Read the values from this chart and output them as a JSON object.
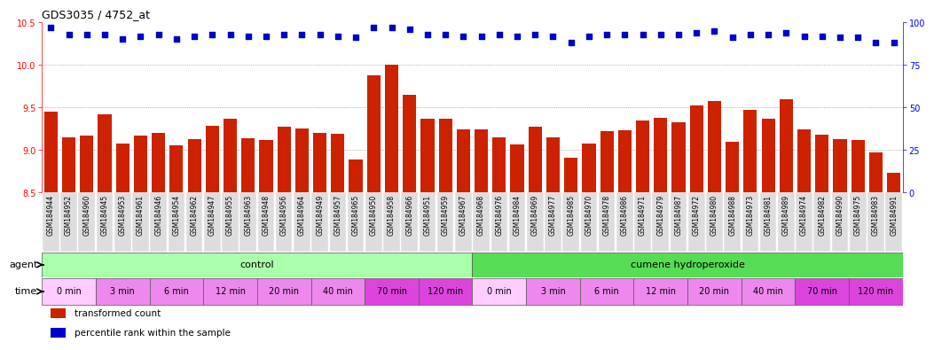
{
  "title": "GDS3035 / 4752_at",
  "samples": [
    "GSM184944",
    "GSM184952",
    "GSM184960",
    "GSM184945",
    "GSM184953",
    "GSM184961",
    "GSM184946",
    "GSM184954",
    "GSM184962",
    "GSM184947",
    "GSM184955",
    "GSM184963",
    "GSM184948",
    "GSM184956",
    "GSM184964",
    "GSM184949",
    "GSM184957",
    "GSM184965",
    "GSM184950",
    "GSM184958",
    "GSM184966",
    "GSM184951",
    "GSM184959",
    "GSM184967",
    "GSM184968",
    "GSM184976",
    "GSM184984",
    "GSM184969",
    "GSM184977",
    "GSM184985",
    "GSM184970",
    "GSM184978",
    "GSM184986",
    "GSM184971",
    "GSM184979",
    "GSM184987",
    "GSM184972",
    "GSM184980",
    "GSM184988",
    "GSM184973",
    "GSM184981",
    "GSM184989",
    "GSM184974",
    "GSM184982",
    "GSM184990",
    "GSM184975",
    "GSM184983",
    "GSM184991"
  ],
  "bar_values": [
    9.45,
    9.15,
    9.17,
    9.42,
    9.07,
    9.17,
    9.2,
    9.05,
    9.13,
    9.28,
    9.37,
    9.14,
    9.12,
    9.27,
    9.25,
    9.2,
    9.19,
    8.89,
    9.88,
    10.0,
    9.65,
    9.37,
    9.37,
    9.24,
    9.24,
    9.15,
    9.06,
    9.27,
    9.15,
    8.91,
    9.08,
    9.22,
    9.23,
    9.35,
    9.38,
    9.33,
    9.52,
    9.57,
    9.1,
    9.47,
    9.37,
    9.6,
    9.24,
    9.18,
    9.13,
    9.12,
    8.97,
    8.73
  ],
  "percentile_values": [
    97,
    93,
    93,
    93,
    90,
    92,
    93,
    90,
    92,
    93,
    93,
    92,
    92,
    93,
    93,
    93,
    92,
    91,
    97,
    97,
    96,
    93,
    93,
    92,
    92,
    93,
    92,
    93,
    92,
    88,
    92,
    93,
    93,
    93,
    93,
    93,
    94,
    95,
    91,
    93,
    93,
    94,
    92,
    92,
    91,
    91,
    88,
    88
  ],
  "bar_color": "#cc2200",
  "dot_color": "#0000cc",
  "ylim_left": [
    8.5,
    10.5
  ],
  "ylim_right": [
    0,
    100
  ],
  "yticks_left": [
    8.5,
    9.0,
    9.5,
    10.0,
    10.5
  ],
  "yticks_right": [
    0,
    25,
    50,
    75,
    100
  ],
  "grid_values": [
    9.0,
    9.5,
    10.0
  ],
  "agent_groups": [
    {
      "label": "control",
      "start": 0,
      "end": 24,
      "color": "#aaffaa"
    },
    {
      "label": "cumene hydroperoxide",
      "start": 24,
      "end": 48,
      "color": "#55dd55"
    }
  ],
  "time_groups": [
    {
      "label": "0 min",
      "start": 0,
      "end": 3,
      "color": "#ffccff"
    },
    {
      "label": "3 min",
      "start": 3,
      "end": 6,
      "color": "#ee88ee"
    },
    {
      "label": "6 min",
      "start": 6,
      "end": 9,
      "color": "#ee88ee"
    },
    {
      "label": "12 min",
      "start": 9,
      "end": 12,
      "color": "#ee88ee"
    },
    {
      "label": "20 min",
      "start": 12,
      "end": 15,
      "color": "#ee88ee"
    },
    {
      "label": "40 min",
      "start": 15,
      "end": 18,
      "color": "#ee88ee"
    },
    {
      "label": "70 min",
      "start": 18,
      "end": 21,
      "color": "#dd44dd"
    },
    {
      "label": "120 min",
      "start": 21,
      "end": 24,
      "color": "#dd44dd"
    },
    {
      "label": "0 min",
      "start": 24,
      "end": 27,
      "color": "#ffccff"
    },
    {
      "label": "3 min",
      "start": 27,
      "end": 30,
      "color": "#ee88ee"
    },
    {
      "label": "6 min",
      "start": 30,
      "end": 33,
      "color": "#ee88ee"
    },
    {
      "label": "12 min",
      "start": 33,
      "end": 36,
      "color": "#ee88ee"
    },
    {
      "label": "20 min",
      "start": 36,
      "end": 39,
      "color": "#ee88ee"
    },
    {
      "label": "40 min",
      "start": 39,
      "end": 42,
      "color": "#ee88ee"
    },
    {
      "label": "70 min",
      "start": 42,
      "end": 45,
      "color": "#dd44dd"
    },
    {
      "label": "120 min",
      "start": 45,
      "end": 48,
      "color": "#dd44dd"
    }
  ],
  "legend_bar_label": "transformed count",
  "legend_dot_label": "percentile rank within the sample",
  "agent_label": "agent",
  "time_label": "time",
  "tick_bg_color": "#dddddd"
}
